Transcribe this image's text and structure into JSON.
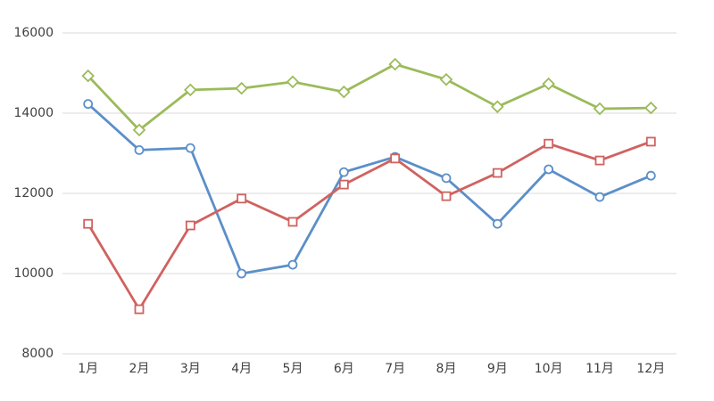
{
  "chart_data": {
    "type": "line",
    "categories": [
      "1月",
      "2月",
      "3月",
      "4月",
      "5月",
      "6月",
      "7月",
      "8月",
      "9月",
      "10月",
      "11月",
      "12月"
    ],
    "series": [
      {
        "color": "#5b8fc9",
        "marker": "circle",
        "values": [
          14230,
          13080,
          13130,
          10000,
          10220,
          12530,
          12910,
          12380,
          11240,
          12600,
          11910,
          12440
        ]
      },
      {
        "color": "#d0625f",
        "marker": "square",
        "values": [
          11240,
          9110,
          11200,
          11870,
          11290,
          12220,
          12870,
          11930,
          12510,
          13240,
          12820,
          13290
        ]
      },
      {
        "color": "#9bbb59",
        "marker": "diamond",
        "values": [
          14930,
          13580,
          14580,
          14620,
          14780,
          14530,
          15220,
          14840,
          14160,
          14730,
          14110,
          14130
        ]
      }
    ],
    "ylim": [
      8000,
      16000
    ],
    "yticks": [
      8000,
      10000,
      12000,
      14000,
      16000
    ],
    "grid": true
  }
}
